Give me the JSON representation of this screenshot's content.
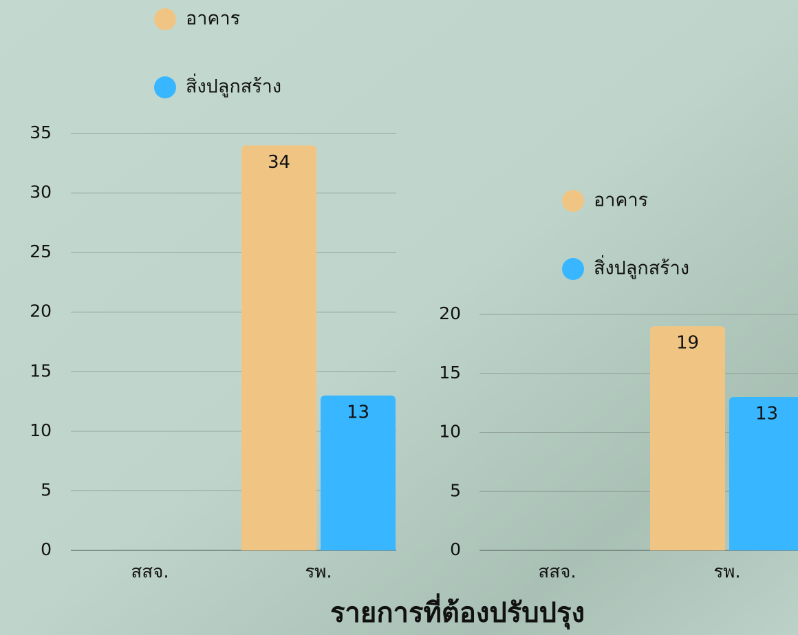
{
  "title": "รายการที่ต้องปรับปรุง",
  "chart_data": [
    {
      "type": "bar",
      "categories": [
        "สสจ.",
        "รพ."
      ],
      "series": [
        {
          "name": "อาคาร",
          "color": "#f0c584",
          "values": [
            null,
            34
          ]
        },
        {
          "name": "สิ่งปลูกสร้าง",
          "color": "#38b6ff",
          "values": [
            null,
            13
          ]
        }
      ],
      "ylim": [
        0,
        35
      ],
      "yticks": [
        0,
        5,
        10,
        15,
        20,
        25,
        30,
        35
      ],
      "grid": true
    },
    {
      "type": "bar",
      "categories": [
        "สสจ.",
        "รพ."
      ],
      "series": [
        {
          "name": "อาคาร",
          "color": "#f0c584",
          "values": [
            null,
            19
          ]
        },
        {
          "name": "สิ่งปลูกสร้าง",
          "color": "#38b6ff",
          "values": [
            null,
            13
          ]
        }
      ],
      "ylim": [
        0,
        20
      ],
      "yticks": [
        0,
        5,
        10,
        15,
        20
      ],
      "grid": true
    }
  ]
}
